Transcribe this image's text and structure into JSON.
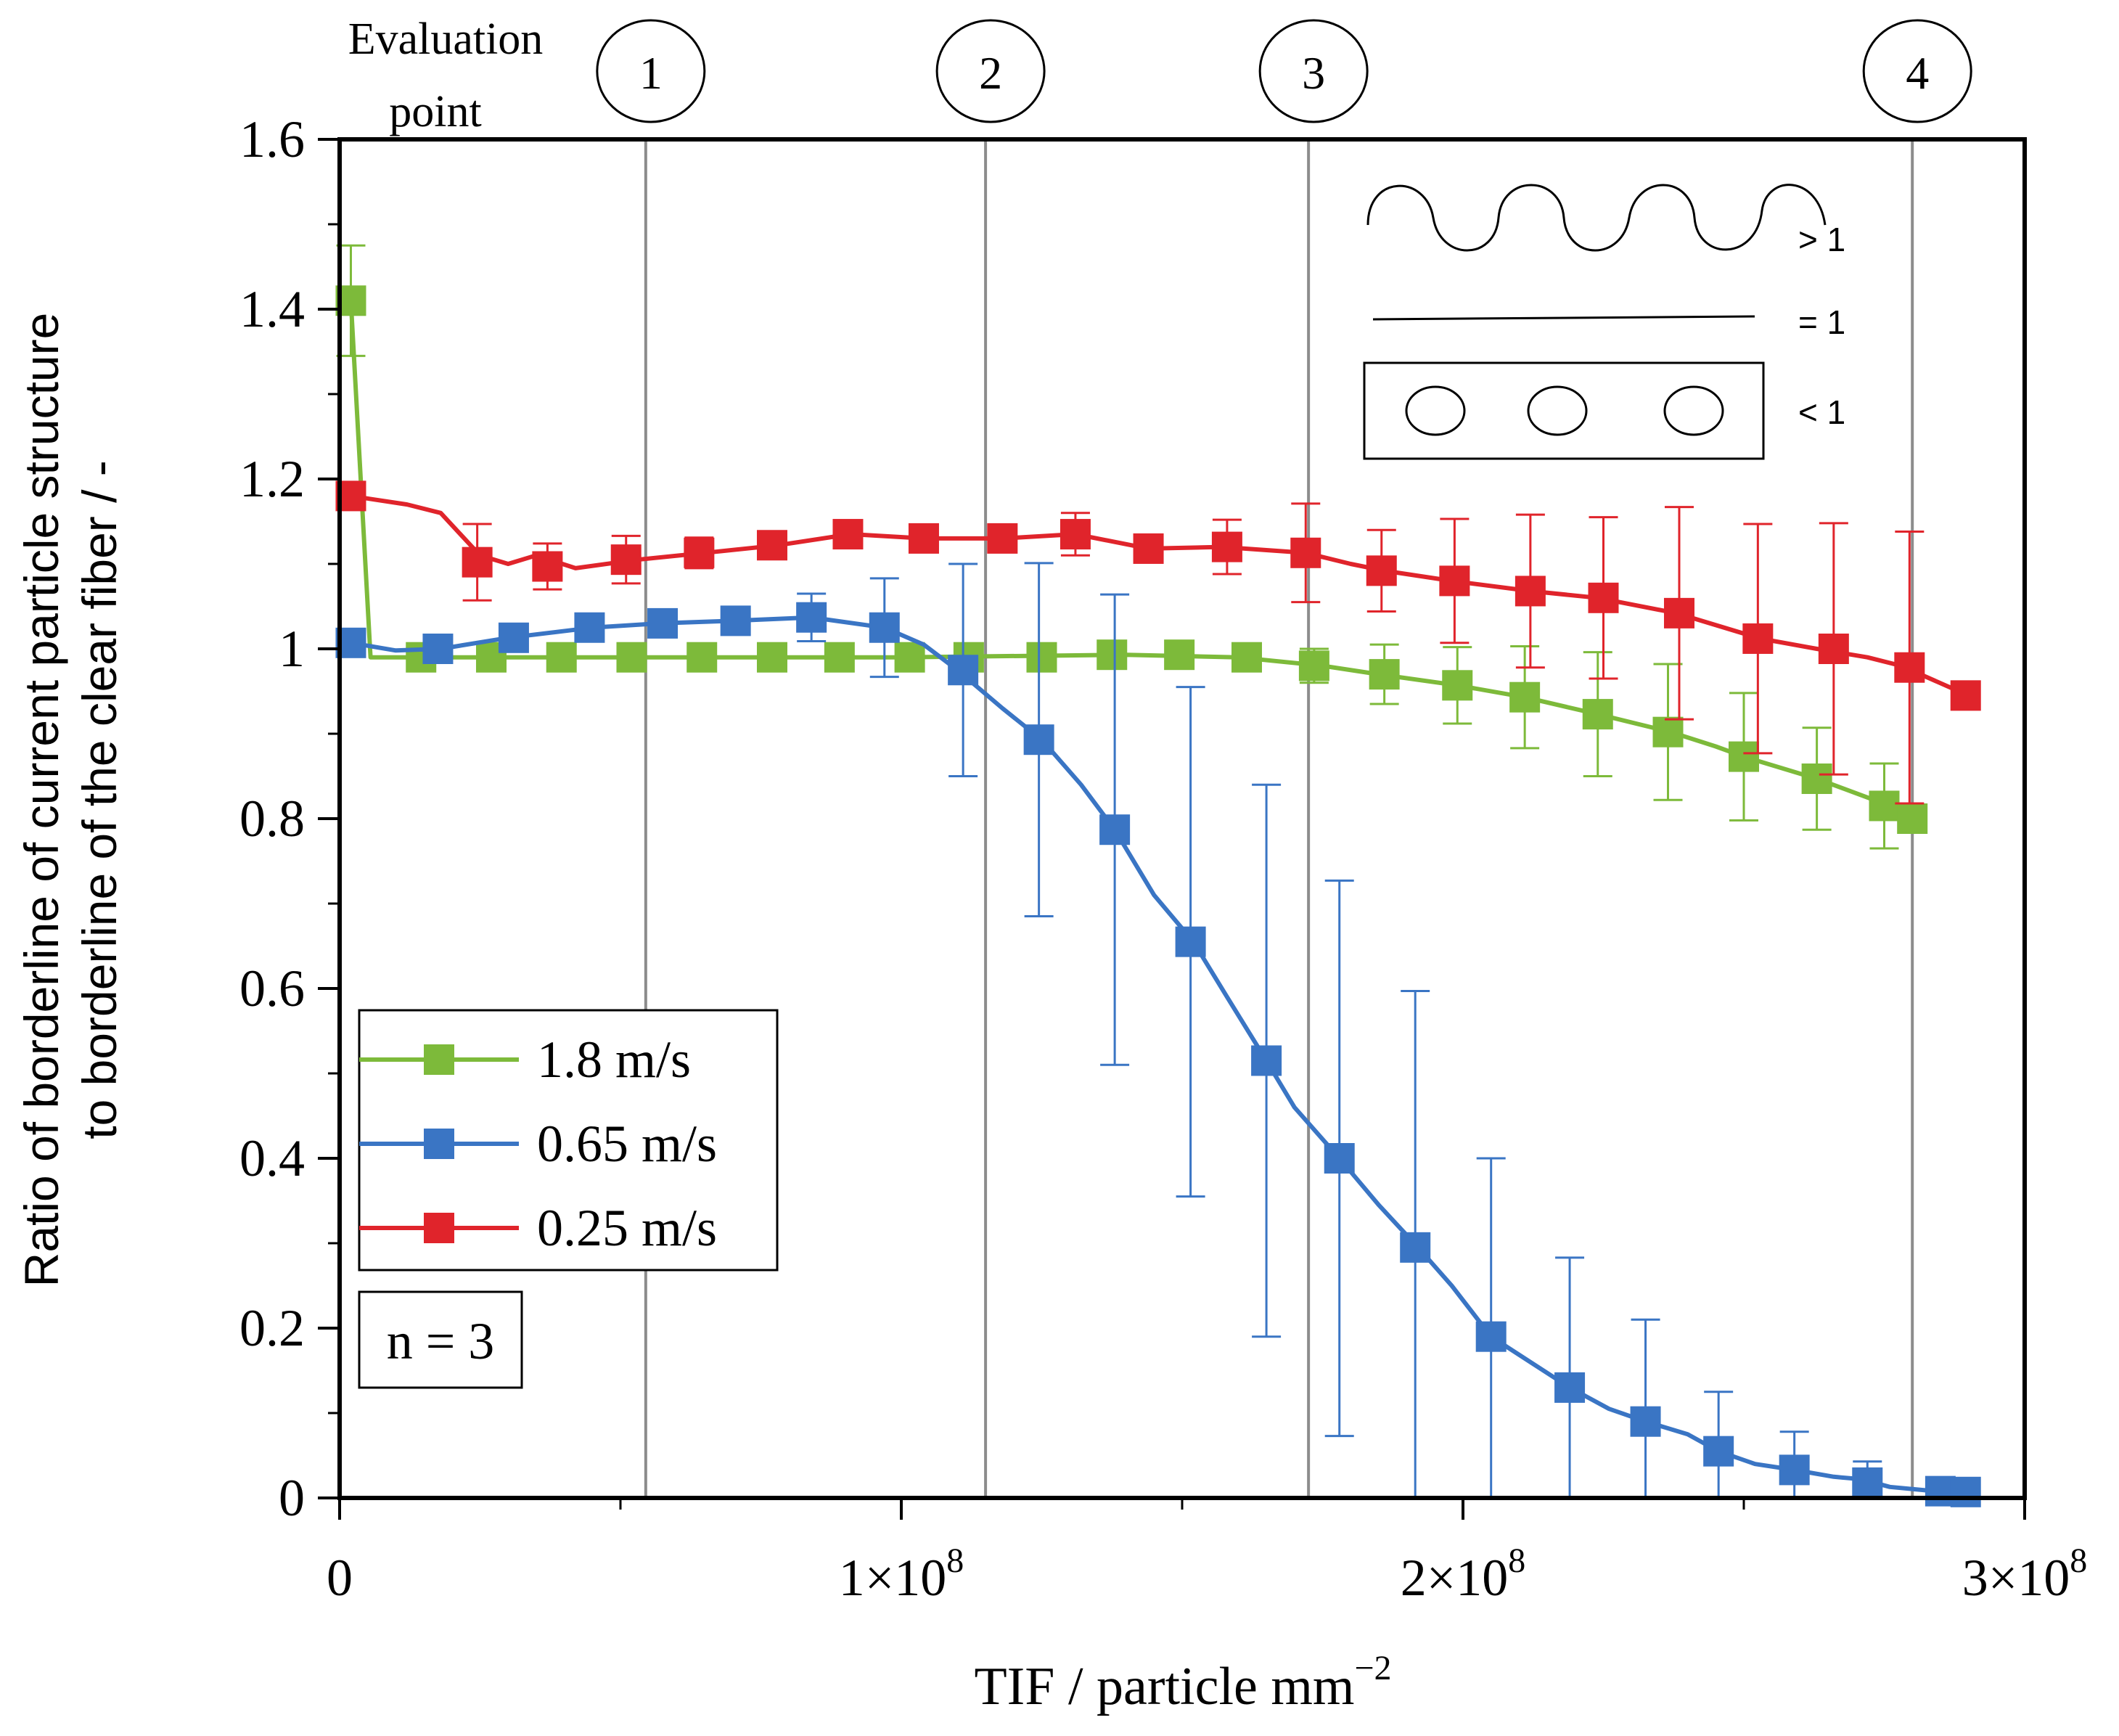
{
  "colors": {
    "green": "#7DBA3A",
    "blue": "#3A75C4",
    "red": "#E0242B",
    "axis": "#000000",
    "guide": "#8C8C8C"
  },
  "chart_data": {
    "type": "line",
    "xlabel": "TIF / particle mm",
    "xlabel_exponent": "−2",
    "ylabel_line1": "Ratio of borderline of current particle structure",
    "ylabel_line2": "to borderline of the clear fiber / -",
    "xlim": [
      0,
      300000000
    ],
    "ylim": [
      0,
      1.6
    ],
    "x_ticks": [
      {
        "value": 0,
        "mantissa": "0",
        "exponent": ""
      },
      {
        "value": 100000000,
        "mantissa": "1×10",
        "exponent": "8"
      },
      {
        "value": 200000000,
        "mantissa": "2×10",
        "exponent": "8"
      },
      {
        "value": 300000000,
        "mantissa": "3×10",
        "exponent": "8"
      }
    ],
    "y_ticks": [
      {
        "value": 0,
        "label": "0"
      },
      {
        "value": 0.2,
        "label": "0.2"
      },
      {
        "value": 0.4,
        "label": "0.4"
      },
      {
        "value": 0.6,
        "label": "0.6"
      },
      {
        "value": 0.8,
        "label": "0.8"
      },
      {
        "value": 1.0,
        "label": "1"
      },
      {
        "value": 1.2,
        "label": "1.2"
      },
      {
        "value": 1.4,
        "label": "1.4"
      },
      {
        "value": 1.6,
        "label": "1.6"
      }
    ],
    "evaluation_label_line1": "Evaluation",
    "evaluation_label_line2": "point",
    "evaluation_points": [
      {
        "label": "1",
        "x": 54500000
      },
      {
        "label": "2",
        "x": 115000000
      },
      {
        "label": "3",
        "x": 172500000
      },
      {
        "label": "4",
        "x": 280000000
      }
    ],
    "series": [
      {
        "name": "1.8 m/s",
        "color_key": "green",
        "line": [
          [
            2000000,
            1.41
          ],
          [
            5500000,
            0.99
          ],
          [
            15000000,
            0.99
          ],
          [
            40000000,
            0.99
          ],
          [
            100000000,
            0.99
          ],
          [
            140000000,
            0.993
          ],
          [
            160000000,
            0.99
          ],
          [
            175000000,
            0.98
          ],
          [
            185000000,
            0.97
          ],
          [
            199000000,
            0.957
          ],
          [
            211000000,
            0.943
          ],
          [
            224000000,
            0.923
          ],
          [
            237000000,
            0.902
          ],
          [
            245000000,
            0.885
          ],
          [
            250000000,
            0.873
          ],
          [
            263000000,
            0.847
          ],
          [
            272000000,
            0.825
          ],
          [
            276000000,
            0.815
          ],
          [
            280000000,
            0.8
          ]
        ],
        "points": [
          {
            "x": 2000000,
            "y": 1.41,
            "err": 0.065
          },
          {
            "x": 14500000,
            "y": 0.99,
            "err": 0
          },
          {
            "x": 27000000,
            "y": 0.99,
            "err": 0
          },
          {
            "x": 39500000,
            "y": 0.99,
            "err": 0
          },
          {
            "x": 52000000,
            "y": 0.99,
            "err": 0
          },
          {
            "x": 64500000,
            "y": 0.99,
            "err": 0
          },
          {
            "x": 77000000,
            "y": 0.99,
            "err": 0
          },
          {
            "x": 89000000,
            "y": 0.99,
            "err": 0
          },
          {
            "x": 101500000,
            "y": 0.99,
            "err": 0
          },
          {
            "x": 112000000,
            "y": 0.99,
            "err": 0
          },
          {
            "x": 125000000,
            "y": 0.99,
            "err": 0
          },
          {
            "x": 137500000,
            "y": 0.993,
            "err": 0
          },
          {
            "x": 149500000,
            "y": 0.993,
            "err": 0
          },
          {
            "x": 161500000,
            "y": 0.99,
            "err": 0
          },
          {
            "x": 173500000,
            "y": 0.98,
            "err": 0.02
          },
          {
            "x": 186000000,
            "y": 0.97,
            "err": 0.035
          },
          {
            "x": 199000000,
            "y": 0.957,
            "err": 0.045
          },
          {
            "x": 211000000,
            "y": 0.943,
            "err": 0.06
          },
          {
            "x": 224000000,
            "y": 0.923,
            "err": 0.073
          },
          {
            "x": 236500000,
            "y": 0.902,
            "err": 0.08
          },
          {
            "x": 250000000,
            "y": 0.873,
            "err": 0.075
          },
          {
            "x": 263000000,
            "y": 0.847,
            "err": 0.06
          },
          {
            "x": 275000000,
            "y": 0.815,
            "err": 0.05
          },
          {
            "x": 280000000,
            "y": 0.8,
            "err": 0
          }
        ]
      },
      {
        "name": "0.65 m/s",
        "color_key": "blue",
        "line": [
          [
            2000000,
            1.007
          ],
          [
            10000000,
            0.998
          ],
          [
            18000000,
            1.0
          ],
          [
            30000000,
            1.013
          ],
          [
            45000000,
            1.025
          ],
          [
            57000000,
            1.03
          ],
          [
            70000000,
            1.033
          ],
          [
            84000000,
            1.037
          ],
          [
            97000000,
            1.025
          ],
          [
            104000000,
            1.005
          ],
          [
            110000000,
            0.975
          ],
          [
            118000000,
            0.93
          ],
          [
            125000000,
            0.893
          ],
          [
            132000000,
            0.84
          ],
          [
            138000000,
            0.787
          ],
          [
            145000000,
            0.71
          ],
          [
            152000000,
            0.655
          ],
          [
            158000000,
            0.59
          ],
          [
            165000000,
            0.515
          ],
          [
            170000000,
            0.46
          ],
          [
            178000000,
            0.4
          ],
          [
            185000000,
            0.345
          ],
          [
            192000000,
            0.295
          ],
          [
            198000000,
            0.25
          ],
          [
            205000000,
            0.19
          ],
          [
            212000000,
            0.16
          ],
          [
            219000000,
            0.13
          ],
          [
            226000000,
            0.105
          ],
          [
            232500000,
            0.09
          ],
          [
            240000000,
            0.075
          ],
          [
            245500000,
            0.055
          ],
          [
            252000000,
            0.04
          ],
          [
            259000000,
            0.033
          ],
          [
            266000000,
            0.025
          ],
          [
            271000000,
            0.022
          ],
          [
            276000000,
            0.013
          ],
          [
            284000000,
            0.008
          ],
          [
            290000000,
            0.007
          ]
        ],
        "points": [
          {
            "x": 2000000,
            "y": 1.007,
            "err": 0
          },
          {
            "x": 17500000,
            "y": 1.0,
            "err": 0
          },
          {
            "x": 31000000,
            "y": 1.013,
            "err": 0
          },
          {
            "x": 44500000,
            "y": 1.025,
            "err": 0
          },
          {
            "x": 57500000,
            "y": 1.03,
            "err": 0
          },
          {
            "x": 70500000,
            "y": 1.033,
            "err": 0
          },
          {
            "x": 84000000,
            "y": 1.037,
            "err": 0.028
          },
          {
            "x": 97000000,
            "y": 1.025,
            "err": 0.058
          },
          {
            "x": 111000000,
            "y": 0.975,
            "err": 0.125
          },
          {
            "x": 124500000,
            "y": 0.893,
            "err": 0.208
          },
          {
            "x": 138000000,
            "y": 0.787,
            "err": 0.277
          },
          {
            "x": 151500000,
            "y": 0.655,
            "err": 0.3
          },
          {
            "x": 165000000,
            "y": 0.515,
            "err": 0.325
          },
          {
            "x": 178000000,
            "y": 0.4,
            "err": 0.327
          },
          {
            "x": 191500000,
            "y": 0.295,
            "err": 0.302
          },
          {
            "x": 205000000,
            "y": 0.19,
            "err": 0.21
          },
          {
            "x": 219000000,
            "y": 0.13,
            "err": 0.153
          },
          {
            "x": 232500000,
            "y": 0.09,
            "err": 0.12
          },
          {
            "x": 245500000,
            "y": 0.055,
            "err": 0.07
          },
          {
            "x": 259000000,
            "y": 0.033,
            "err": 0.045
          },
          {
            "x": 272000000,
            "y": 0.018,
            "err": 0.025
          },
          {
            "x": 285000000,
            "y": 0.008,
            "err": 0
          },
          {
            "x": 289500000,
            "y": 0.007,
            "err": 0
          }
        ]
      },
      {
        "name": "0.25 m/s",
        "color_key": "red",
        "line": [
          [
            2000000,
            1.18
          ],
          [
            12000000,
            1.17
          ],
          [
            18000000,
            1.16
          ],
          [
            25000000,
            1.11
          ],
          [
            30000000,
            1.1
          ],
          [
            35000000,
            1.11
          ],
          [
            42000000,
            1.095
          ],
          [
            53000000,
            1.105
          ],
          [
            65000000,
            1.113
          ],
          [
            78000000,
            1.122
          ],
          [
            91000000,
            1.135
          ],
          [
            104000000,
            1.13
          ],
          [
            118000000,
            1.13
          ],
          [
            131000000,
            1.135
          ],
          [
            144000000,
            1.118
          ],
          [
            157000000,
            1.12
          ],
          [
            172000000,
            1.113
          ],
          [
            180000000,
            1.1
          ],
          [
            186000000,
            1.092
          ],
          [
            198000000,
            1.08
          ],
          [
            212000000,
            1.068
          ],
          [
            224000000,
            1.06
          ],
          [
            238000000,
            1.042
          ],
          [
            253000000,
            1.012
          ],
          [
            263000000,
            1.0
          ],
          [
            272000000,
            0.99
          ],
          [
            278000000,
            0.98
          ],
          [
            290000000,
            0.945
          ]
        ],
        "points": [
          {
            "x": 2000000,
            "y": 1.18,
            "err": 0
          },
          {
            "x": 24500000,
            "y": 1.102,
            "err": 0.045
          },
          {
            "x": 37000000,
            "y": 1.097,
            "err": 0.027
          },
          {
            "x": 51000000,
            "y": 1.105,
            "err": 0.028
          },
          {
            "x": 64000000,
            "y": 1.113,
            "err": 0.018
          },
          {
            "x": 77000000,
            "y": 1.122,
            "err": 0
          },
          {
            "x": 90500000,
            "y": 1.135,
            "err": 0
          },
          {
            "x": 104000000,
            "y": 1.13,
            "err": 0
          },
          {
            "x": 118000000,
            "y": 1.13,
            "err": 0
          },
          {
            "x": 131000000,
            "y": 1.135,
            "err": 0.025
          },
          {
            "x": 144000000,
            "y": 1.118,
            "err": 0
          },
          {
            "x": 158000000,
            "y": 1.12,
            "err": 0.032
          },
          {
            "x": 172000000,
            "y": 1.113,
            "err": 0.058
          },
          {
            "x": 185500000,
            "y": 1.092,
            "err": 0.048
          },
          {
            "x": 198500000,
            "y": 1.08,
            "err": 0.073
          },
          {
            "x": 212000000,
            "y": 1.068,
            "err": 0.09
          },
          {
            "x": 225000000,
            "y": 1.06,
            "err": 0.095
          },
          {
            "x": 238500000,
            "y": 1.042,
            "err": 0.125
          },
          {
            "x": 252500000,
            "y": 1.012,
            "err": 0.135
          },
          {
            "x": 266000000,
            "y": 1.0,
            "err": 0.148
          },
          {
            "x": 279500000,
            "y": 0.978,
            "err": 0.16
          },
          {
            "x": 289500000,
            "y": 0.945,
            "err": 0
          }
        ]
      }
    ],
    "legend_position": "bottom-left",
    "sample_note": "n = 3",
    "inset_legend_labels": [
      "> 1",
      "= 1",
      "< 1"
    ]
  }
}
